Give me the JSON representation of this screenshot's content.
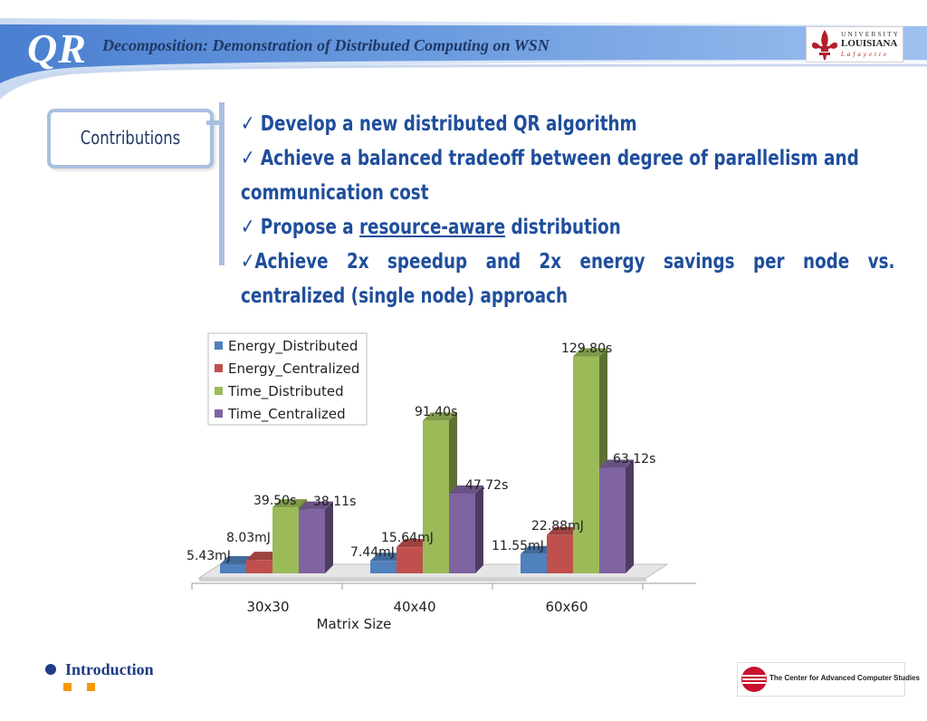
{
  "header": {
    "logo_text": "QR",
    "title": "Decomposition: Demonstration of Distributed Computing on WSN",
    "university_logo": {
      "line1": "UNIVERSITY",
      "line2": "LOUISIANA",
      "line3": "Lafayette"
    }
  },
  "section_label": "Contributions",
  "bullets": [
    {
      "check": "✓",
      "text": "Develop a new distributed QR algorithm"
    },
    {
      "check": "✓",
      "text": "Achieve a balanced tradeoff between degree of parallelism and"
    },
    {
      "check": "",
      "text": "communication cost"
    },
    {
      "check": "✓",
      "text_before": "Propose a ",
      "underlined": "resource-aware",
      "text_after": " distribution"
    },
    {
      "check": "✓",
      "text": "Achieve 2x speedup and 2x energy savings per node vs."
    },
    {
      "check": "",
      "text": "centralized (single node) approach"
    }
  ],
  "chart_data": {
    "type": "bar",
    "xlabel": "Matrix Size",
    "categories": [
      "30x30",
      "40x40",
      "60x60"
    ],
    "series": [
      {
        "name": "Energy_Distributed",
        "color": "#4f81bd",
        "values": [
          5.43,
          7.44,
          11.55
        ],
        "labels": [
          "5.43mJ",
          "7.44mJ",
          "11.55mJ"
        ]
      },
      {
        "name": "Energy_Centralized",
        "color": "#c0504d",
        "values": [
          8.03,
          15.64,
          22.88
        ],
        "labels": [
          "8.03mJ",
          "15.64mJ",
          "22.88mJ"
        ]
      },
      {
        "name": "Time_Distributed",
        "color": "#9bbb59",
        "values": [
          39.5,
          91.4,
          129.8
        ],
        "labels": [
          "39.50s",
          "91.40s",
          "129.80s"
        ]
      },
      {
        "name": "Time_Centralized",
        "color": "#8064a2",
        "values": [
          38.11,
          47.72,
          63.12
        ],
        "labels": [
          "38.11s",
          "47.72s",
          "63.12s"
        ]
      }
    ],
    "legend_position": "top-left",
    "grid": false
  },
  "footer": {
    "nav_label": "Introduction",
    "center_label": "The Center for Advanced Computer Studies"
  },
  "colors": {
    "accent": "#1f4e9c",
    "header_blue": "#5b8fd6",
    "panel_border": "#a9bfe0",
    "footer_orange": "#f29900"
  }
}
